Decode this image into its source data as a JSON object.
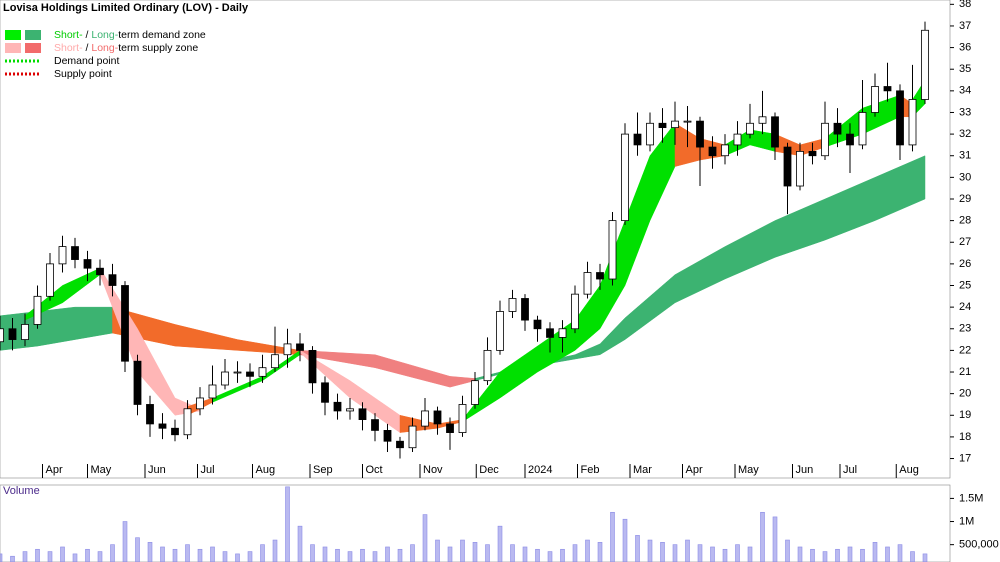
{
  "chart_data": {
    "type": "candlestick",
    "title": "Lovisa Holdings Limited Ordinary (LOV) - Daily",
    "x": [
      0,
      1,
      2,
      3,
      4,
      5,
      6,
      7,
      8,
      9,
      10,
      11,
      12,
      13,
      14,
      15,
      16,
      17,
      18,
      19,
      20,
      21,
      22,
      23,
      24,
      25,
      26,
      27,
      28,
      29,
      30,
      31,
      32,
      33,
      34,
      35,
      36,
      37,
      38,
      39,
      40,
      41,
      42,
      43,
      44,
      45,
      46,
      47,
      48,
      49,
      50,
      51,
      52,
      53,
      54,
      55,
      56,
      57,
      58,
      59,
      60,
      61,
      62,
      63,
      64,
      65,
      66,
      67,
      68,
      69,
      70,
      71,
      72,
      73,
      74
    ],
    "open": [
      22.4,
      23,
      22.5,
      23.2,
      24.5,
      26,
      26.8,
      26.2,
      25.8,
      25.5,
      25,
      21.5,
      19.5,
      18.6,
      18.4,
      18.1,
      19.3,
      19.8,
      20.4,
      21,
      21,
      20.8,
      21.2,
      21.8,
      22.3,
      22,
      20.5,
      19.6,
      19.2,
      19.3,
      18.8,
      18.3,
      17.8,
      17.5,
      18.5,
      19.2,
      18.6,
      18.2,
      19.5,
      20.6,
      22,
      23.8,
      24.4,
      23.4,
      23,
      22.6,
      23,
      24.6,
      25.6,
      25.3,
      28,
      32,
      31.5,
      32.5,
      32.3,
      32.6,
      32.6,
      31.4,
      31,
      31.5,
      32,
      32.5,
      32.8,
      31.4,
      29.6,
      31.2,
      31,
      32.5,
      32,
      31.5,
      33,
      34.2,
      34,
      31.5,
      33.6
    ],
    "high": [
      23.6,
      23.5,
      23.7,
      25,
      26.5,
      27.3,
      27.2,
      26.6,
      26.2,
      26,
      25.2,
      21.8,
      19.9,
      19.1,
      18.8,
      19.7,
      20.3,
      21.3,
      21.6,
      21.5,
      21.4,
      21.8,
      23.1,
      23,
      22.8,
      22.2,
      20.8,
      20,
      19.8,
      19.6,
      19.1,
      18.6,
      18,
      18.9,
      19.8,
      19.4,
      18.9,
      19.9,
      21,
      22.6,
      24.3,
      24.8,
      24.6,
      23.6,
      23.3,
      23.4,
      25,
      26.1,
      26,
      28.4,
      32.5,
      33,
      33,
      33.2,
      33.5,
      33.3,
      32.8,
      31.9,
      32,
      32.6,
      33.4,
      34,
      33,
      31.6,
      31.6,
      31.6,
      33.5,
      33.2,
      32.5,
      34.5,
      34.8,
      35.3,
      34.3,
      35.2,
      37.2
    ],
    "low": [
      22,
      22,
      22.2,
      23,
      24.3,
      25.6,
      25.8,
      25.2,
      25,
      24.5,
      21,
      19,
      18,
      17.9,
      17.8,
      17.9,
      19,
      19.5,
      20.2,
      20.5,
      20.3,
      20.5,
      21,
      21.2,
      21.5,
      20,
      19,
      18.8,
      18.8,
      18.3,
      17.8,
      17.3,
      17,
      17.3,
      18.3,
      18.1,
      17.4,
      18,
      19.3,
      20.4,
      21.8,
      23.5,
      22.9,
      22.4,
      21.9,
      21.9,
      22.8,
      24.4,
      24.8,
      25,
      27.8,
      31,
      31.2,
      31.6,
      31.5,
      31.4,
      29.6,
      30.4,
      30.6,
      31,
      31.8,
      32,
      30.8,
      28.3,
      29.4,
      30.6,
      30.8,
      31.4,
      30.2,
      31.3,
      32.8,
      33.5,
      30.8,
      31.2,
      33.4
    ],
    "close": [
      23,
      22.5,
      23.2,
      24.5,
      26,
      26.8,
      26.2,
      25.8,
      25.5,
      25,
      21.5,
      19.5,
      18.6,
      18.4,
      18.1,
      19.3,
      19.8,
      20.4,
      21,
      21,
      20.8,
      21.2,
      21.8,
      22.3,
      22,
      20.5,
      19.6,
      19.2,
      19.3,
      18.8,
      18.3,
      17.8,
      17.5,
      18.5,
      19.2,
      18.6,
      18.2,
      19.5,
      20.6,
      22,
      23.8,
      24.4,
      23.4,
      23,
      22.6,
      23,
      24.6,
      25.6,
      25.3,
      28,
      32,
      31.5,
      32.5,
      32.3,
      32.6,
      32.6,
      31.4,
      31,
      31.5,
      32,
      32.5,
      32.8,
      31.4,
      29.6,
      31.2,
      31,
      32.5,
      32,
      31.5,
      33,
      34.2,
      34,
      31.5,
      33.6,
      36.8
    ],
    "xlim": [
      0,
      76
    ],
    "xticks": [
      {
        "value": 3.4,
        "label": "Apr"
      },
      {
        "value": 7,
        "label": "May"
      },
      {
        "value": 11.6,
        "label": "Jun"
      },
      {
        "value": 15.8,
        "label": "Jul"
      },
      {
        "value": 20.2,
        "label": "Aug"
      },
      {
        "value": 24.8,
        "label": "Sep"
      },
      {
        "value": 29,
        "label": "Oct"
      },
      {
        "value": 33.6,
        "label": "Nov"
      },
      {
        "value": 38.1,
        "label": "Dec"
      },
      {
        "value": 42,
        "label": "2024"
      },
      {
        "value": 46.2,
        "label": "Feb"
      },
      {
        "value": 50.4,
        "label": "Mar"
      },
      {
        "value": 54.6,
        "label": "Apr"
      },
      {
        "value": 58.8,
        "label": "May"
      },
      {
        "value": 63.4,
        "label": "Jun"
      },
      {
        "value": 67.2,
        "label": "Jul"
      },
      {
        "value": 71.7,
        "label": "Aug"
      }
    ],
    "ylim": [
      16.1,
      38.2
    ],
    "yticks": [
      17,
      18,
      19,
      20,
      21,
      22,
      23,
      24,
      25,
      26,
      27,
      28,
      29,
      30,
      31,
      32,
      33,
      34,
      35,
      36,
      37,
      38
    ],
    "bands": [
      {
        "color": "#3cb371",
        "x": [
          0,
          3,
          6,
          9
        ],
        "upper": [
          23.6,
          23.8,
          24,
          24
        ],
        "lower": [
          22,
          22.2,
          22.5,
          22.8
        ]
      },
      {
        "color": "#f26b2a",
        "x": [
          9,
          14,
          19,
          24
        ],
        "upper": [
          24,
          23.2,
          22.5,
          22
        ],
        "lower": [
          22.8,
          22.2,
          22,
          21.8
        ]
      },
      {
        "color": "#f08080",
        "x": [
          24,
          30,
          36,
          38
        ],
        "upper": [
          22,
          21.8,
          20.8,
          20.7
        ],
        "lower": [
          21.8,
          21.2,
          20.3,
          20.6
        ]
      },
      {
        "color": "#3cb371",
        "x": [
          38,
          42,
          46,
          48,
          50,
          54,
          58,
          62,
          66,
          70,
          74
        ],
        "upper": [
          20.7,
          21.3,
          21.8,
          22.3,
          23.5,
          25.5,
          26.8,
          28,
          29,
          30,
          31
        ],
        "lower": [
          20.6,
          21.2,
          21.6,
          21.8,
          22.5,
          24.2,
          25.3,
          26.3,
          27.1,
          28,
          29
        ]
      },
      {
        "color": "#00e000",
        "x": [
          2,
          5,
          8
        ],
        "upper": [
          23.6,
          25,
          25.8
        ],
        "lower": [
          23.4,
          24.2,
          25.5
        ]
      },
      {
        "color": "#ffb6b6",
        "x": [
          8,
          11,
          14,
          16
        ],
        "upper": [
          25.8,
          23,
          19.8,
          19.3
        ],
        "lower": [
          25.5,
          21,
          19,
          19.2
        ]
      },
      {
        "color": "#f26b2a",
        "x": [
          15,
          17
        ],
        "upper": [
          19.4,
          19.8
        ],
        "lower": [
          19,
          19.6
        ]
      },
      {
        "color": "#00e000",
        "x": [
          17,
          21,
          24
        ],
        "upper": [
          19.8,
          20.8,
          22
        ],
        "lower": [
          19.6,
          20.6,
          21.8
        ]
      },
      {
        "color": "#ffb6b6",
        "x": [
          24,
          28,
          32
        ],
        "upper": [
          22,
          20.6,
          19
        ],
        "lower": [
          21.9,
          19.8,
          18.2
        ]
      },
      {
        "color": "#f26b2a",
        "x": [
          32,
          35,
          37
        ],
        "upper": [
          19,
          18.6,
          18.8
        ],
        "lower": [
          18.2,
          18.4,
          18.7
        ]
      },
      {
        "color": "#00e000",
        "x": [
          37,
          40,
          43,
          46,
          48,
          50,
          52,
          54
        ],
        "upper": [
          18.8,
          21,
          22.2,
          23.4,
          25,
          28,
          31,
          32.5
        ],
        "lower": [
          18.7,
          19.8,
          21,
          22,
          23,
          25,
          28,
          30.5
        ]
      },
      {
        "color": "#f26b2a",
        "x": [
          54,
          56,
          58
        ],
        "upper": [
          32.5,
          31.8,
          31.5
        ],
        "lower": [
          30.5,
          30.8,
          31
        ]
      },
      {
        "color": "#00e000",
        "x": [
          58,
          60,
          62
        ],
        "upper": [
          31.5,
          32.2,
          32
        ],
        "lower": [
          31,
          31.5,
          31.2
        ]
      },
      {
        "color": "#f26b2a",
        "x": [
          62,
          64,
          66
        ],
        "upper": [
          32,
          31.5,
          31.8
        ],
        "lower": [
          31.2,
          31,
          31.4
        ]
      },
      {
        "color": "#00e000",
        "x": [
          66,
          69,
          72
        ],
        "upper": [
          31.8,
          33.2,
          33.8
        ],
        "lower": [
          31.4,
          32,
          32.8
        ]
      },
      {
        "color": "#f26b2a",
        "x": [
          72,
          73
        ],
        "upper": [
          33.8,
          33.4
        ],
        "lower": [
          32.8,
          32.8
        ]
      },
      {
        "color": "#00e000",
        "x": [
          73,
          74
        ],
        "upper": [
          33.6,
          34.5
        ],
        "lower": [
          32.8,
          33.4
        ]
      }
    ],
    "legend": [
      {
        "swatches": [
          "#00ee00",
          "#3cb371"
        ],
        "text": [
          {
            "t": "Short-",
            "color": "#00cc00"
          },
          {
            "t": " / "
          },
          {
            "t": "Long-",
            "color": "#3cb371"
          },
          {
            "t": "term demand zone"
          }
        ]
      },
      {
        "swatches": [
          "#ffb6b6",
          "#f26b6b"
        ],
        "text": [
          {
            "t": "Short-",
            "color": "#ffaaaa"
          },
          {
            "t": " / "
          },
          {
            "t": "Long-",
            "color": "#f26b6b"
          },
          {
            "t": "term supply zone"
          }
        ]
      },
      {
        "line": "#00dd00",
        "text": [
          {
            "t": "Demand point"
          }
        ]
      },
      {
        "line": "#dd0000",
        "text": [
          {
            "t": "Supply point"
          }
        ]
      }
    ],
    "volume_label": "Volume",
    "volume": [
      300000,
      250000,
      350000,
      400000,
      350000,
      450000,
      300000,
      400000,
      350000,
      500000,
      1000000,
      650000,
      550000,
      450000,
      400000,
      500000,
      400000,
      450000,
      350000,
      300000,
      350000,
      500000,
      600000,
      1750000,
      900000,
      500000,
      450000,
      400000,
      350000,
      400000,
      350000,
      450000,
      400000,
      500000,
      1150000,
      600000,
      450000,
      600000,
      550000,
      500000,
      900000,
      500000,
      450000,
      400000,
      350000,
      400000,
      500000,
      600000,
      550000,
      1200000,
      1050000,
      700000,
      600000,
      550000,
      500000,
      600000,
      500000,
      450000,
      400000,
      500000,
      450000,
      1200000,
      1100000,
      600000,
      450000,
      400000,
      350000,
      400000,
      450000,
      400000,
      550000,
      450000,
      500000,
      350000,
      300000
    ],
    "volume_color": "#8a8ae6",
    "volume_ylim": [
      125000,
      1790000
    ],
    "volume_yticks": [
      {
        "value": 500000,
        "label": "500,000"
      },
      {
        "value": 1000000,
        "label": "1M"
      },
      {
        "value": 1500000,
        "label": "1.5M"
      }
    ]
  }
}
